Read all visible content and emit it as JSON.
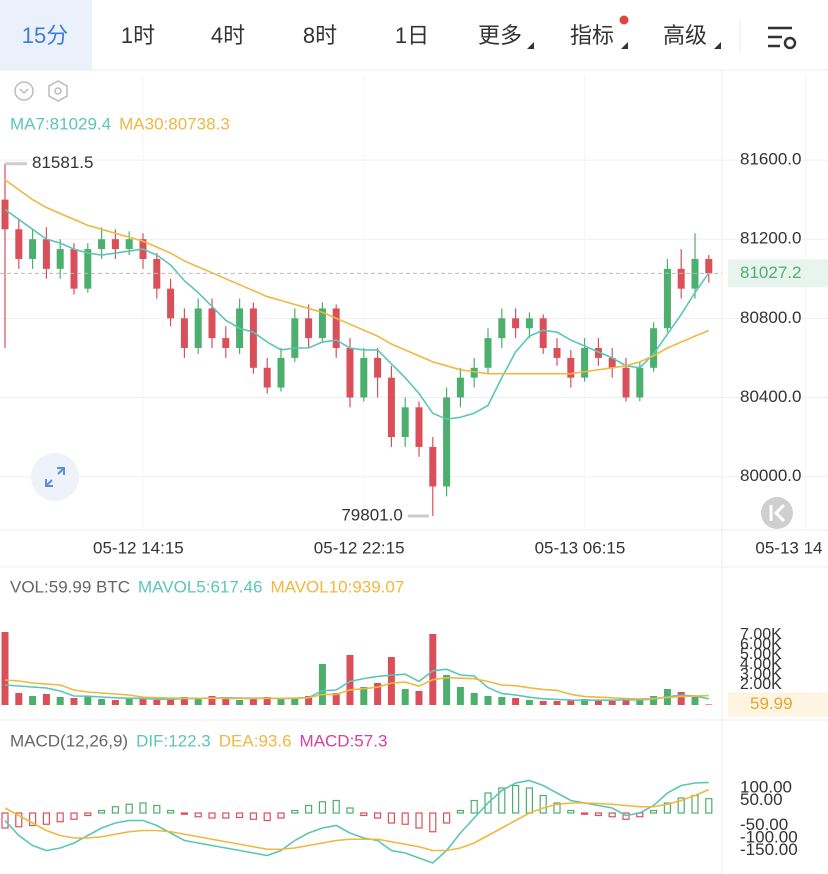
{
  "tabs": [
    "15分",
    "1时",
    "4时",
    "8时",
    "1日",
    "更多",
    "指标",
    "高级"
  ],
  "chart_data": [
    {
      "type": "candlestick",
      "open": [
        81400,
        81250,
        81100,
        81200,
        81050,
        81150,
        80950,
        81150,
        81200,
        81150,
        81200,
        81100,
        80950,
        80800,
        80650,
        80850,
        80700,
        80650,
        80850,
        80550,
        80450,
        80600,
        80800,
        80700,
        80850,
        80650,
        80400,
        80600,
        80500,
        80200,
        80350,
        80150,
        79950,
        80400,
        80500,
        80550,
        80700,
        80800,
        80750,
        80800,
        80650,
        80600,
        80500,
        80650,
        80600,
        80550,
        80400,
        80550,
        80750,
        81050,
        80950,
        81100
      ],
      "high": [
        81581.5,
        81300,
        81250,
        81260,
        81200,
        81180,
        81180,
        81260,
        81250,
        81240,
        81230,
        81130,
        81000,
        80850,
        80900,
        80900,
        80760,
        80900,
        80880,
        80600,
        80650,
        80850,
        80870,
        80880,
        80870,
        80700,
        80650,
        80650,
        80560,
        80400,
        80380,
        80200,
        80450,
        80550,
        80600,
        80750,
        80850,
        80850,
        80830,
        80820,
        80700,
        80640,
        80700,
        80700,
        80650,
        80600,
        80580,
        80780,
        81100,
        81150,
        81230,
        81120
      ],
      "low": [
        80650,
        81050,
        81050,
        81000,
        81000,
        80920,
        80930,
        81100,
        81100,
        81120,
        81050,
        80900,
        80760,
        80600,
        80620,
        80650,
        80600,
        80620,
        80520,
        80420,
        80430,
        80580,
        80650,
        80680,
        80600,
        80350,
        80380,
        80400,
        80150,
        80150,
        80100,
        79801,
        79900,
        80350,
        80450,
        80520,
        80650,
        80700,
        80700,
        80620,
        80560,
        80450,
        80480,
        80560,
        80500,
        80380,
        80380,
        80530,
        80730,
        80900,
        80900,
        80980
      ],
      "close": [
        81250,
        81100,
        81200,
        81050,
        81150,
        80950,
        81150,
        81200,
        81150,
        81200,
        81100,
        80950,
        80800,
        80650,
        80850,
        80700,
        80650,
        80850,
        80550,
        80450,
        80600,
        80800,
        80700,
        80850,
        80650,
        80400,
        80600,
        80500,
        80200,
        80350,
        80150,
        79950,
        80400,
        80500,
        80550,
        80700,
        80800,
        80750,
        80800,
        80650,
        80600,
        80500,
        80650,
        80600,
        80550,
        80400,
        80550,
        80750,
        81050,
        80950,
        81100,
        81027.2
      ],
      "up_color": "#4caf6e",
      "down_color": "#d9505a",
      "series": [
        {
          "name": "MA7:81029.4",
          "color": "#5cc6b6",
          "values": [
            81350,
            81300,
            81250,
            81200,
            81180,
            81150,
            81130,
            81120,
            81130,
            81140,
            81150,
            81120,
            81070,
            80990,
            80930,
            80860,
            80790,
            80750,
            80730,
            80680,
            80640,
            80650,
            80650,
            80680,
            80690,
            80650,
            80640,
            80640,
            80570,
            80500,
            80420,
            80320,
            80290,
            80300,
            80320,
            80360,
            80500,
            80630,
            80710,
            80740,
            80730,
            80690,
            80660,
            80630,
            80600,
            80560,
            80550,
            80620,
            80720,
            80820,
            80930,
            81029.4
          ]
        },
        {
          "name": "MA30:80738.3",
          "color": "#efb840",
          "values": [
            81500,
            81450,
            81400,
            81360,
            81330,
            81300,
            81270,
            81250,
            81230,
            81210,
            81190,
            81160,
            81130,
            81090,
            81060,
            81030,
            81000,
            80970,
            80940,
            80910,
            80890,
            80870,
            80850,
            80830,
            80800,
            80770,
            80740,
            80710,
            80670,
            80640,
            80610,
            80580,
            80560,
            80540,
            80530,
            80520,
            80520,
            80520,
            80520,
            80520,
            80520,
            80520,
            80530,
            80540,
            80550,
            80560,
            80580,
            80610,
            80650,
            80680,
            80710,
            80738.3
          ]
        }
      ],
      "annotations": {
        "max": "81581.5",
        "min": "79801.0"
      },
      "ylim": [
        79730,
        82030
      ],
      "yticks": [
        {
          "value": 81600,
          "label": "81600.0"
        },
        {
          "value": 81200,
          "label": "81200.0"
        },
        {
          "value": 80800,
          "label": "80800.0"
        },
        {
          "value": 80400,
          "label": "80400.0"
        },
        {
          "value": 80000,
          "label": "80000.0"
        }
      ],
      "xticks": [
        {
          "value": 10,
          "label": "05-12 14:15"
        },
        {
          "value": 26,
          "label": "05-12 22:15"
        },
        {
          "value": 42,
          "label": "05-13 06:15"
        },
        {
          "value": 58,
          "label": "05-13 14"
        }
      ],
      "grid": true
    },
    {
      "type": "volume",
      "title": "VOL:59.99 BTC",
      "values": [
        7300,
        1200,
        900,
        1100,
        800,
        700,
        900,
        600,
        500,
        700,
        600,
        500,
        600,
        800,
        700,
        900,
        600,
        500,
        700,
        800,
        600,
        700,
        900,
        4100,
        1200,
        5000,
        1800,
        2200,
        4800,
        1600,
        1400,
        7100,
        3000,
        1800,
        1200,
        900,
        800,
        700,
        500,
        400,
        400,
        500,
        600,
        500,
        400,
        600,
        500,
        900,
        1600,
        1300,
        800,
        59.99
      ],
      "series": [
        {
          "name": "MAVOL5:617.46",
          "color": "#5cc6b6",
          "values": [
            2000,
            1900,
            1800,
            1700,
            1400,
            900,
            880,
            800,
            720,
            680,
            660,
            580,
            580,
            640,
            640,
            700,
            720,
            700,
            680,
            700,
            640,
            660,
            740,
            1420,
            1500,
            2360,
            2640,
            2860,
            2980,
            3080,
            2360,
            3420,
            3580,
            3000,
            2900,
            1740,
            1140,
            1000,
            780,
            620,
            560,
            500,
            480,
            480,
            480,
            520,
            520,
            580,
            820,
            980,
            900,
            617.46
          ]
        },
        {
          "name": "MAVOL10:939.07",
          "color": "#efb840",
          "values": [
            2500,
            2400,
            2200,
            2100,
            2000,
            1500,
            1300,
            1200,
            1100,
            1000,
            780,
            730,
            690,
            680,
            670,
            680,
            650,
            640,
            660,
            670,
            670,
            690,
            720,
            1060,
            1060,
            1510,
            1630,
            1780,
            2190,
            2290,
            1880,
            2530,
            2730,
            2680,
            2630,
            2350,
            2000,
            1930,
            1720,
            1560,
            1460,
            1070,
            840,
            780,
            720,
            650,
            610,
            650,
            760,
            840,
            900,
            939.07
          ]
        }
      ],
      "ylim": [
        0,
        8500
      ],
      "yticks": [
        {
          "value": 7000,
          "label": "7.00K"
        },
        {
          "value": 6000,
          "label": "6.00K"
        },
        {
          "value": 5000,
          "label": "5.00K"
        },
        {
          "value": 4000,
          "label": "4.00K"
        },
        {
          "value": 3000,
          "label": "3.00K"
        },
        {
          "value": 2000,
          "label": "2.00K"
        }
      ]
    },
    {
      "type": "macd",
      "title": "MACD(12,26,9)",
      "up_color": "#4caf6e",
      "down_color": "#d9505a",
      "series": [
        {
          "name": "DIF:122.3",
          "color": "#5cc6b6",
          "values": [
            -30,
            -90,
            -130,
            -150,
            -140,
            -120,
            -90,
            -60,
            -40,
            -30,
            -30,
            -50,
            -80,
            -110,
            -120,
            -130,
            -140,
            -150,
            -160,
            -170,
            -150,
            -110,
            -80,
            -60,
            -50,
            -80,
            -100,
            -110,
            -150,
            -160,
            -180,
            -200,
            -150,
            -80,
            -20,
            40,
            90,
            120,
            130,
            110,
            80,
            50,
            40,
            30,
            20,
            -10,
            0,
            30,
            80,
            110,
            120,
            122.3
          ]
        },
        {
          "name": "DEA:93.6",
          "color": "#efb840",
          "values": [
            20,
            -10,
            -40,
            -70,
            -90,
            -100,
            -100,
            -95,
            -85,
            -75,
            -70,
            -70,
            -75,
            -85,
            -95,
            -105,
            -115,
            -125,
            -135,
            -145,
            -145,
            -140,
            -130,
            -120,
            -110,
            -105,
            -105,
            -105,
            -115,
            -125,
            -135,
            -150,
            -150,
            -140,
            -120,
            -90,
            -60,
            -30,
            0,
            20,
            35,
            40,
            40,
            38,
            35,
            30,
            25,
            25,
            35,
            50,
            70,
            93.6
          ]
        },
        {
          "name": "MACD:57.3",
          "color": "#d63fa3",
          "kind": "histogram",
          "values": [
            -60,
            -55,
            -50,
            -45,
            -35,
            -25,
            -10,
            10,
            25,
            35,
            40,
            30,
            10,
            -5,
            -15,
            -20,
            -20,
            -18,
            -25,
            -30,
            -20,
            10,
            30,
            45,
            50,
            20,
            -10,
            -20,
            -40,
            -45,
            -60,
            -75,
            -40,
            10,
            50,
            80,
            100,
            110,
            100,
            70,
            40,
            10,
            -5,
            -10,
            -15,
            -25,
            -15,
            10,
            40,
            60,
            70,
            57.3
          ]
        }
      ],
      "ylim": [
        -228,
        212
      ],
      "yticks": [
        {
          "value": 100,
          "label": "100.00"
        },
        {
          "value": 50,
          "label": "50.00"
        },
        {
          "value": -50,
          "label": "-50.00"
        },
        {
          "value": -100,
          "label": "-100.00"
        },
        {
          "value": -150,
          "label": "-150.00"
        }
      ]
    }
  ]
}
